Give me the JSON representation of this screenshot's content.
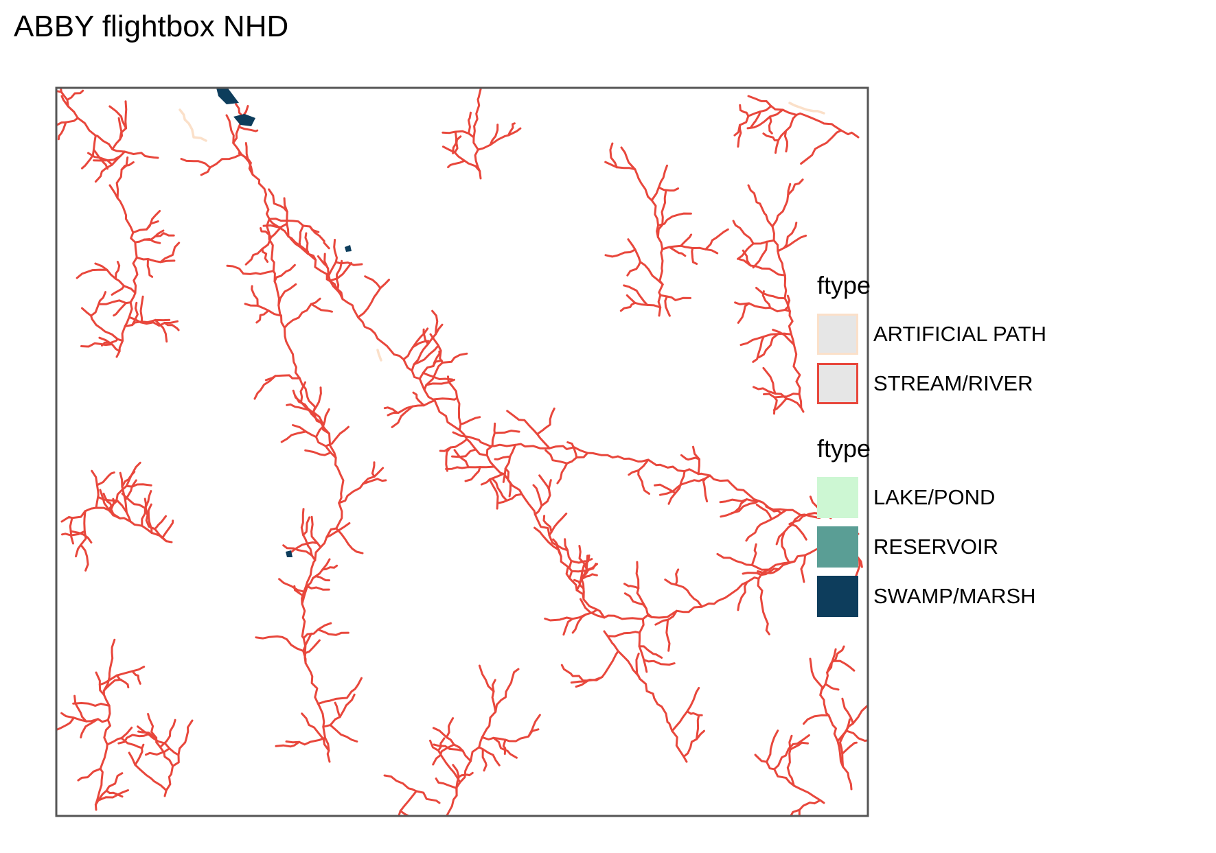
{
  "title": "ABBY flightbox NHD",
  "legends": [
    {
      "title": "ftype",
      "items": [
        {
          "label": "ARTIFICIAL PATH",
          "fill": "#e6e6e6",
          "stroke": "#fbe0c9"
        },
        {
          "label": "STREAM/RIVER",
          "fill": "#e6e6e6",
          "stroke": "#e8473c"
        }
      ]
    },
    {
      "title": "ftype",
      "items": [
        {
          "label": "LAKE/POND",
          "fill": "#cdf7d3",
          "stroke": "#cdf7d3"
        },
        {
          "label": "RESERVOIR",
          "fill": "#5a9e95",
          "stroke": "#5a9e95"
        },
        {
          "label": "SWAMP/MARSH",
          "fill": "#0d3d5c",
          "stroke": "#0d3d5c"
        }
      ]
    }
  ],
  "colors": {
    "stream": "#e8473c",
    "artificial_path": "#fbe0c9",
    "swamp": "#0d3d5c",
    "frame": "#555555"
  }
}
